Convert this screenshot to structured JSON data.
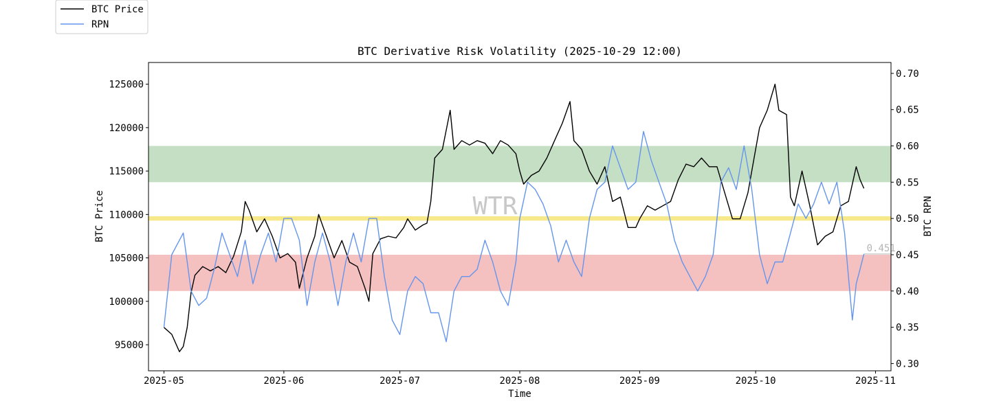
{
  "chart_data": {
    "type": "line",
    "title": "BTC Derivative Risk Volatility (2025-10-29 12:00)",
    "xlabel": "Time",
    "ylabel_left": "BTC Price",
    "ylabel_right": "BTC RPN",
    "xlim": [
      "2025-04-27",
      "2025-11-05"
    ],
    "ylim_left": [
      92000,
      127500
    ],
    "ylim_right": [
      0.29,
      0.715
    ],
    "x_ticks": [
      "2025-05-01",
      "2025-06-01",
      "2025-07-01",
      "2025-08-01",
      "2025-09-01",
      "2025-10-01",
      "2025-11-01"
    ],
    "x_tick_labels": [
      "2025-05",
      "2025-06",
      "2025-07",
      "2025-08",
      "2025-09",
      "2025-10",
      "2025-11"
    ],
    "y_left_ticks": [
      95000,
      100000,
      105000,
      110000,
      115000,
      120000,
      125000
    ],
    "y_right_ticks": [
      0.3,
      0.35,
      0.4,
      0.45,
      0.5,
      0.55,
      0.6,
      0.65,
      0.7
    ],
    "y_right_tick_labels": [
      "0.30",
      "0.35",
      "0.40",
      "0.45",
      "0.50",
      "0.55",
      "0.60",
      "0.65",
      "0.70"
    ],
    "grid": false,
    "legend": {
      "placement": "top-left",
      "entries": [
        {
          "name": "BTC Price",
          "color": "#000000"
        },
        {
          "name": "RPN",
          "color": "#6495ed"
        }
      ]
    },
    "bands_right": [
      {
        "from": 0.55,
        "to": 0.6,
        "color": "#c5dfc5"
      },
      {
        "from": 0.497,
        "to": 0.503,
        "color": "#f7e88a"
      },
      {
        "from": 0.4,
        "to": 0.45,
        "color": "#f5c0c0"
      }
    ],
    "watermark": "WTR",
    "last_value_label": "0.451",
    "series": [
      {
        "name": "BTC Price",
        "axis": "left",
        "color": "#000000",
        "points": [
          [
            "2025-05-01",
            97000
          ],
          [
            "2025-05-03",
            96200
          ],
          [
            "2025-05-05",
            94200
          ],
          [
            "2025-05-06",
            94800
          ],
          [
            "2025-05-07",
            97000
          ],
          [
            "2025-05-08",
            101000
          ],
          [
            "2025-05-09",
            103000
          ],
          [
            "2025-05-11",
            104000
          ],
          [
            "2025-05-13",
            103500
          ],
          [
            "2025-05-15",
            104000
          ],
          [
            "2025-05-17",
            103300
          ],
          [
            "2025-05-19",
            105200
          ],
          [
            "2025-05-21",
            108000
          ],
          [
            "2025-05-22",
            111500
          ],
          [
            "2025-05-23",
            110500
          ],
          [
            "2025-05-25",
            108000
          ],
          [
            "2025-05-27",
            109500
          ],
          [
            "2025-05-29",
            107500
          ],
          [
            "2025-05-31",
            105000
          ],
          [
            "2025-06-02",
            105500
          ],
          [
            "2025-06-04",
            104500
          ],
          [
            "2025-06-05",
            101500
          ],
          [
            "2025-06-07",
            105000
          ],
          [
            "2025-06-09",
            107500
          ],
          [
            "2025-06-10",
            110000
          ],
          [
            "2025-06-12",
            107500
          ],
          [
            "2025-06-14",
            105000
          ],
          [
            "2025-06-16",
            107000
          ],
          [
            "2025-06-18",
            104500
          ],
          [
            "2025-06-20",
            104000
          ],
          [
            "2025-06-22",
            101500
          ],
          [
            "2025-06-23",
            100000
          ],
          [
            "2025-06-24",
            105500
          ],
          [
            "2025-06-26",
            107200
          ],
          [
            "2025-06-28",
            107500
          ],
          [
            "2025-06-30",
            107300
          ],
          [
            "2025-07-02",
            108500
          ],
          [
            "2025-07-03",
            109500
          ],
          [
            "2025-07-05",
            108200
          ],
          [
            "2025-07-07",
            108800
          ],
          [
            "2025-07-08",
            109000
          ],
          [
            "2025-07-09",
            111500
          ],
          [
            "2025-07-10",
            116500
          ],
          [
            "2025-07-12",
            117500
          ],
          [
            "2025-07-14",
            122000
          ],
          [
            "2025-07-15",
            117500
          ],
          [
            "2025-07-17",
            118500
          ],
          [
            "2025-07-19",
            118000
          ],
          [
            "2025-07-21",
            118500
          ],
          [
            "2025-07-23",
            118200
          ],
          [
            "2025-07-25",
            117000
          ],
          [
            "2025-07-27",
            118500
          ],
          [
            "2025-07-29",
            118000
          ],
          [
            "2025-07-31",
            117000
          ],
          [
            "2025-08-01",
            115000
          ],
          [
            "2025-08-02",
            113500
          ],
          [
            "2025-08-04",
            114500
          ],
          [
            "2025-08-06",
            115000
          ],
          [
            "2025-08-08",
            116500
          ],
          [
            "2025-08-10",
            118500
          ],
          [
            "2025-08-12",
            120500
          ],
          [
            "2025-08-14",
            123000
          ],
          [
            "2025-08-15",
            118500
          ],
          [
            "2025-08-17",
            117500
          ],
          [
            "2025-08-19",
            115000
          ],
          [
            "2025-08-21",
            113500
          ],
          [
            "2025-08-23",
            115500
          ],
          [
            "2025-08-25",
            111500
          ],
          [
            "2025-08-27",
            112000
          ],
          [
            "2025-08-29",
            108500
          ],
          [
            "2025-08-31",
            108500
          ],
          [
            "2025-09-01",
            109500
          ],
          [
            "2025-09-03",
            111000
          ],
          [
            "2025-09-05",
            110500
          ],
          [
            "2025-09-07",
            111000
          ],
          [
            "2025-09-09",
            111500
          ],
          [
            "2025-09-11",
            114000
          ],
          [
            "2025-09-13",
            115800
          ],
          [
            "2025-09-15",
            115500
          ],
          [
            "2025-09-17",
            116500
          ],
          [
            "2025-09-19",
            115500
          ],
          [
            "2025-09-21",
            115500
          ],
          [
            "2025-09-23",
            112500
          ],
          [
            "2025-09-25",
            109500
          ],
          [
            "2025-09-27",
            109500
          ],
          [
            "2025-09-29",
            112500
          ],
          [
            "2025-10-01",
            117500
          ],
          [
            "2025-10-02",
            120000
          ],
          [
            "2025-10-04",
            122000
          ],
          [
            "2025-10-06",
            125000
          ],
          [
            "2025-10-07",
            122000
          ],
          [
            "2025-10-09",
            121500
          ],
          [
            "2025-10-10",
            112000
          ],
          [
            "2025-10-11",
            111000
          ],
          [
            "2025-10-13",
            115000
          ],
          [
            "2025-10-15",
            111000
          ],
          [
            "2025-10-17",
            106500
          ],
          [
            "2025-10-19",
            107500
          ],
          [
            "2025-10-21",
            108000
          ],
          [
            "2025-10-23",
            111000
          ],
          [
            "2025-10-25",
            111500
          ],
          [
            "2025-10-27",
            115500
          ],
          [
            "2025-10-28",
            114000
          ],
          [
            "2025-10-29",
            113000
          ]
        ]
      },
      {
        "name": "RPN",
        "axis": "right",
        "color": "#6495ed",
        "points": [
          [
            "2025-05-01",
            0.35
          ],
          [
            "2025-05-03",
            0.45
          ],
          [
            "2025-05-05",
            0.47
          ],
          [
            "2025-05-06",
            0.48
          ],
          [
            "2025-05-07",
            0.44
          ],
          [
            "2025-05-08",
            0.4
          ],
          [
            "2025-05-10",
            0.38
          ],
          [
            "2025-05-12",
            0.39
          ],
          [
            "2025-05-14",
            0.43
          ],
          [
            "2025-05-16",
            0.48
          ],
          [
            "2025-05-18",
            0.45
          ],
          [
            "2025-05-20",
            0.42
          ],
          [
            "2025-05-22",
            0.47
          ],
          [
            "2025-05-24",
            0.41
          ],
          [
            "2025-05-26",
            0.45
          ],
          [
            "2025-05-28",
            0.48
          ],
          [
            "2025-05-30",
            0.44
          ],
          [
            "2025-06-01",
            0.5
          ],
          [
            "2025-06-03",
            0.5
          ],
          [
            "2025-06-05",
            0.47
          ],
          [
            "2025-06-07",
            0.38
          ],
          [
            "2025-06-09",
            0.44
          ],
          [
            "2025-06-11",
            0.48
          ],
          [
            "2025-06-13",
            0.44
          ],
          [
            "2025-06-15",
            0.38
          ],
          [
            "2025-06-17",
            0.44
          ],
          [
            "2025-06-19",
            0.48
          ],
          [
            "2025-06-21",
            0.44
          ],
          [
            "2025-06-23",
            0.5
          ],
          [
            "2025-06-25",
            0.5
          ],
          [
            "2025-06-27",
            0.42
          ],
          [
            "2025-06-29",
            0.36
          ],
          [
            "2025-07-01",
            0.34
          ],
          [
            "2025-07-03",
            0.4
          ],
          [
            "2025-07-05",
            0.42
          ],
          [
            "2025-07-07",
            0.41
          ],
          [
            "2025-07-09",
            0.37
          ],
          [
            "2025-07-11",
            0.37
          ],
          [
            "2025-07-13",
            0.33
          ],
          [
            "2025-07-15",
            0.4
          ],
          [
            "2025-07-17",
            0.42
          ],
          [
            "2025-07-19",
            0.42
          ],
          [
            "2025-07-21",
            0.43
          ],
          [
            "2025-07-23",
            0.47
          ],
          [
            "2025-07-25",
            0.44
          ],
          [
            "2025-07-27",
            0.4
          ],
          [
            "2025-07-29",
            0.38
          ],
          [
            "2025-07-31",
            0.44
          ],
          [
            "2025-08-01",
            0.5
          ],
          [
            "2025-08-03",
            0.55
          ],
          [
            "2025-08-05",
            0.54
          ],
          [
            "2025-08-07",
            0.52
          ],
          [
            "2025-08-09",
            0.49
          ],
          [
            "2025-08-11",
            0.44
          ],
          [
            "2025-08-13",
            0.47
          ],
          [
            "2025-08-15",
            0.44
          ],
          [
            "2025-08-17",
            0.42
          ],
          [
            "2025-08-19",
            0.5
          ],
          [
            "2025-08-21",
            0.54
          ],
          [
            "2025-08-23",
            0.55
          ],
          [
            "2025-08-25",
            0.6
          ],
          [
            "2025-08-27",
            0.57
          ],
          [
            "2025-08-29",
            0.54
          ],
          [
            "2025-08-31",
            0.55
          ],
          [
            "2025-09-02",
            0.62
          ],
          [
            "2025-09-04",
            0.58
          ],
          [
            "2025-09-06",
            0.55
          ],
          [
            "2025-09-08",
            0.52
          ],
          [
            "2025-09-10",
            0.47
          ],
          [
            "2025-09-12",
            0.44
          ],
          [
            "2025-09-14",
            0.42
          ],
          [
            "2025-09-16",
            0.4
          ],
          [
            "2025-09-18",
            0.42
          ],
          [
            "2025-09-20",
            0.45
          ],
          [
            "2025-09-22",
            0.55
          ],
          [
            "2025-09-24",
            0.57
          ],
          [
            "2025-09-26",
            0.54
          ],
          [
            "2025-09-28",
            0.6
          ],
          [
            "2025-09-30",
            0.54
          ],
          [
            "2025-10-02",
            0.45
          ],
          [
            "2025-10-04",
            0.41
          ],
          [
            "2025-10-06",
            0.44
          ],
          [
            "2025-10-08",
            0.44
          ],
          [
            "2025-10-10",
            0.48
          ],
          [
            "2025-10-12",
            0.52
          ],
          [
            "2025-10-14",
            0.5
          ],
          [
            "2025-10-16",
            0.52
          ],
          [
            "2025-10-18",
            0.55
          ],
          [
            "2025-10-20",
            0.52
          ],
          [
            "2025-10-22",
            0.55
          ],
          [
            "2025-10-24",
            0.48
          ],
          [
            "2025-10-25",
            0.42
          ],
          [
            "2025-10-26",
            0.36
          ],
          [
            "2025-10-27",
            0.41
          ],
          [
            "2025-10-28",
            0.43
          ],
          [
            "2025-10-29",
            0.451
          ]
        ]
      }
    ]
  }
}
